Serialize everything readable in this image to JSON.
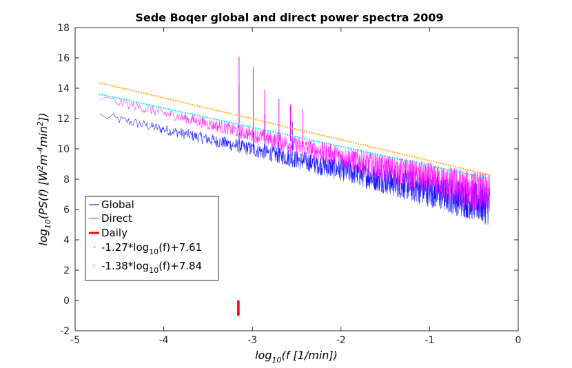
{
  "chart_data": {
    "type": "line",
    "title": "Sede Boqer global and direct power spectra 2009",
    "xlabel": {
      "main": "log",
      "sub": "10",
      "rest": "(f [1/min])"
    },
    "ylabel": {
      "main": "log",
      "sub": "10",
      "p1": "(PS(f) [W",
      "sup1": "2",
      "p2": "m",
      "sup2": "-4",
      "p3": "min",
      "sup3": "2",
      "p4": "])"
    },
    "xlim": [
      -5,
      0
    ],
    "ylim": [
      -2,
      18
    ],
    "xticks": [
      -5,
      -4,
      -3,
      -2,
      -1,
      0
    ],
    "yticks": [
      -2,
      0,
      2,
      4,
      6,
      8,
      10,
      12,
      14,
      16,
      18
    ],
    "x_range": [
      -4.72,
      -0.32
    ],
    "series": [
      {
        "name": "Global",
        "color": "#0000ff",
        "style": "noise",
        "trend": {
          "slope": -1.27,
          "intercept": 7.61
        },
        "offset": -1.3,
        "spikes": [
          {
            "x": -3.15,
            "y": 14.2
          },
          {
            "x": -2.99,
            "y": 12.0
          },
          {
            "x": -2.86,
            "y": 12.3
          },
          {
            "x": -2.7,
            "y": 11.2
          },
          {
            "x": -2.55,
            "y": 11.8
          }
        ]
      },
      {
        "name": "Direct",
        "color": "#ff00ff",
        "style": "noise",
        "trend": {
          "slope": -1.38,
          "intercept": 7.84
        },
        "offset": -0.9,
        "spikes": [
          {
            "x": -3.15,
            "y": 16.1
          },
          {
            "x": -2.99,
            "y": 15.4
          },
          {
            "x": -2.86,
            "y": 13.9
          },
          {
            "x": -2.7,
            "y": 13.3
          },
          {
            "x": -2.57,
            "y": 12.9
          },
          {
            "x": -2.43,
            "y": 12.6
          }
        ]
      }
    ],
    "daily": {
      "name": "Daily",
      "color": "#ff0000",
      "x": -3.158,
      "y_range": [
        -1.0,
        0.0
      ]
    },
    "fits": [
      {
        "label_pre": "-1.27*log",
        "label_sub": "10",
        "label_post": "(f)+7.61",
        "color": "#00e5e5",
        "slope": -1.27,
        "intercept": 7.61
      },
      {
        "label_pre": "-1.38*log",
        "label_sub": "10",
        "label_post": "(f)+7.84",
        "color": "#ffa500",
        "slope": -1.38,
        "intercept": 7.84
      }
    ],
    "legend_position": "lower-left",
    "grid": false
  }
}
